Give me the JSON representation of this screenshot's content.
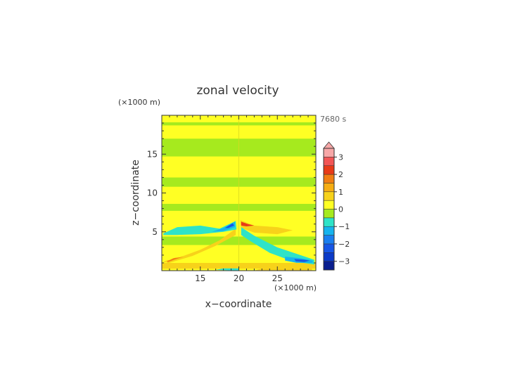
{
  "chart_data": {
    "type": "heatmap",
    "title": "zonal velocity",
    "xlabel": "x−coordinate",
    "ylabel": "z−coordinate",
    "x_units": "(×1000 m)",
    "y_units": "(×1000 m)",
    "time_label": "7680 s",
    "xlim": [
      10,
      30
    ],
    "ylim": [
      0,
      20
    ],
    "x_ticks": [
      15,
      20,
      25
    ],
    "y_ticks": [
      5,
      10,
      15
    ],
    "colorbar": {
      "levels": [
        -3.5,
        -3,
        -2.5,
        -2,
        -1.5,
        -1,
        -0.5,
        0,
        0.5,
        1,
        1.5,
        2,
        2.5,
        3,
        3.5
      ],
      "colors": [
        "#0a1f8f",
        "#0b3ac8",
        "#1656e6",
        "#1a7ff0",
        "#16b4ee",
        "#2ee3c8",
        "#a6ea1e",
        "#ffff24",
        "#f7d21a",
        "#f6ad12",
        "#f17d12",
        "#e83a17",
        "#f25555",
        "#f7a7a7"
      ],
      "tick_labels": [
        "3",
        "2",
        "1",
        "0",
        "−1",
        "−2",
        "−3"
      ],
      "tick_values": [
        3,
        2,
        1,
        0,
        -1,
        -2,
        -3
      ],
      "extend": "max"
    },
    "bands": [
      {
        "z": [
          0.0,
          0.25
        ],
        "u": 0.2
      },
      {
        "z": [
          0.25,
          1.0
        ],
        "u": 0.6
      },
      {
        "z": [
          1.0,
          3.3
        ],
        "u": 0.2
      },
      {
        "z": [
          3.3,
          4.4
        ],
        "u": -0.2
      },
      {
        "z": [
          4.4,
          5.9
        ],
        "u": 0.2
      },
      {
        "z": [
          5.9,
          7.7
        ],
        "u": 0.2
      },
      {
        "z": [
          7.7,
          8.6
        ],
        "u": -0.2
      },
      {
        "z": [
          8.6,
          10.8
        ],
        "u": 0.2
      },
      {
        "z": [
          10.8,
          12.0
        ],
        "u": -0.2
      },
      {
        "z": [
          12.0,
          14.7
        ],
        "u": 0.2
      },
      {
        "z": [
          14.7,
          17.0
        ],
        "u": -0.2
      },
      {
        "z": [
          17.0,
          18.7
        ],
        "u": 0.2
      },
      {
        "z": [
          18.7,
          19.1
        ],
        "u": -0.2
      },
      {
        "z": [
          19.1,
          20.0
        ],
        "u": 0.2
      }
    ],
    "features": [
      {
        "name": "left lower jet",
        "u": 0.7,
        "pts": [
          [
            10,
            0.8
          ],
          [
            12,
            1.6
          ],
          [
            15,
            2.7
          ],
          [
            17.5,
            3.9
          ],
          [
            19.6,
            5.4
          ],
          [
            19.6,
            4.6
          ],
          [
            17,
            3.2
          ],
          [
            14,
            1.9
          ],
          [
            11,
            1.0
          ],
          [
            10,
            0.6
          ]
        ]
      },
      {
        "name": "left lower jet core",
        "u": 1.2,
        "pts": [
          [
            10.2,
            1.0
          ],
          [
            11.5,
            1.6
          ],
          [
            13.5,
            2.0
          ],
          [
            12,
            1.7
          ],
          [
            10.4,
            1.2
          ]
        ]
      },
      {
        "name": "left lower jet max",
        "u": 1.7,
        "pts": [
          [
            10.6,
            1.2
          ],
          [
            11.6,
            1.6
          ],
          [
            12.8,
            1.8
          ],
          [
            11.6,
            1.4
          ],
          [
            10.8,
            1.1
          ]
        ]
      },
      {
        "name": "left upper cyan tongue",
        "u": -0.7,
        "pts": [
          [
            10.2,
            4.8
          ],
          [
            12,
            5.6
          ],
          [
            15,
            5.8
          ],
          [
            17.5,
            5.4
          ],
          [
            19.6,
            6.4
          ],
          [
            19.7,
            5.3
          ],
          [
            18,
            5.0
          ],
          [
            15,
            4.7
          ],
          [
            12,
            4.6
          ],
          [
            10.2,
            4.6
          ]
        ]
      },
      {
        "name": "left upper blue",
        "u": -1.3,
        "pts": [
          [
            16.5,
            5.0
          ],
          [
            18,
            5.5
          ],
          [
            19.5,
            6.3
          ],
          [
            19.5,
            5.6
          ],
          [
            18,
            5.1
          ]
        ]
      },
      {
        "name": "left upper dark blue",
        "u": -2.3,
        "pts": [
          [
            18.2,
            5.5
          ],
          [
            19.2,
            6.1
          ],
          [
            19.4,
            5.8
          ],
          [
            18.6,
            5.5
          ]
        ]
      },
      {
        "name": "right upper orange",
        "u": 0.9,
        "pts": [
          [
            20.2,
            6.5
          ],
          [
            22,
            5.8
          ],
          [
            25,
            5.6
          ],
          [
            27,
            5.2
          ],
          [
            25,
            4.7
          ],
          [
            22,
            4.9
          ],
          [
            20.3,
            5.5
          ]
        ]
      },
      {
        "name": "right upper red",
        "u": 2.2,
        "pts": [
          [
            20.3,
            6.3
          ],
          [
            21.2,
            6.0
          ],
          [
            22,
            5.8
          ],
          [
            21.0,
            5.7
          ],
          [
            20.3,
            5.8
          ]
        ]
      },
      {
        "name": "right lower cyan",
        "u": -0.7,
        "pts": [
          [
            20.3,
            5.6
          ],
          [
            22,
            4.5
          ],
          [
            25,
            3.0
          ],
          [
            28,
            2.0
          ],
          [
            29.8,
            1.4
          ],
          [
            29.8,
            0.8
          ],
          [
            27,
            1.2
          ],
          [
            24,
            2.3
          ],
          [
            21.5,
            3.8
          ],
          [
            20.3,
            4.6
          ]
        ]
      },
      {
        "name": "right lower blue",
        "u": -1.4,
        "pts": [
          [
            26,
            1.8
          ],
          [
            28,
            1.6
          ],
          [
            29.6,
            1.3
          ],
          [
            29.6,
            1.0
          ],
          [
            27.5,
            1.0
          ],
          [
            26,
            1.3
          ]
        ]
      },
      {
        "name": "right lower dark blue",
        "u": -2.3,
        "pts": [
          [
            27.2,
            1.5
          ],
          [
            28.5,
            1.4
          ],
          [
            29.2,
            1.3
          ],
          [
            28.5,
            1.1
          ],
          [
            27.4,
            1.2
          ]
        ]
      },
      {
        "name": "bottom cyan near center",
        "u": -0.7,
        "pts": [
          [
            17,
            0.1
          ],
          [
            20,
            0.0
          ],
          [
            20,
            0.3
          ],
          [
            18,
            0.3
          ]
        ]
      },
      {
        "name": "right bottom orange",
        "u": 0.9,
        "pts": [
          [
            22,
            0.0
          ],
          [
            29.5,
            0.0
          ],
          [
            29.5,
            0.5
          ],
          [
            26,
            0.6
          ],
          [
            23,
            0.3
          ]
        ]
      }
    ]
  }
}
